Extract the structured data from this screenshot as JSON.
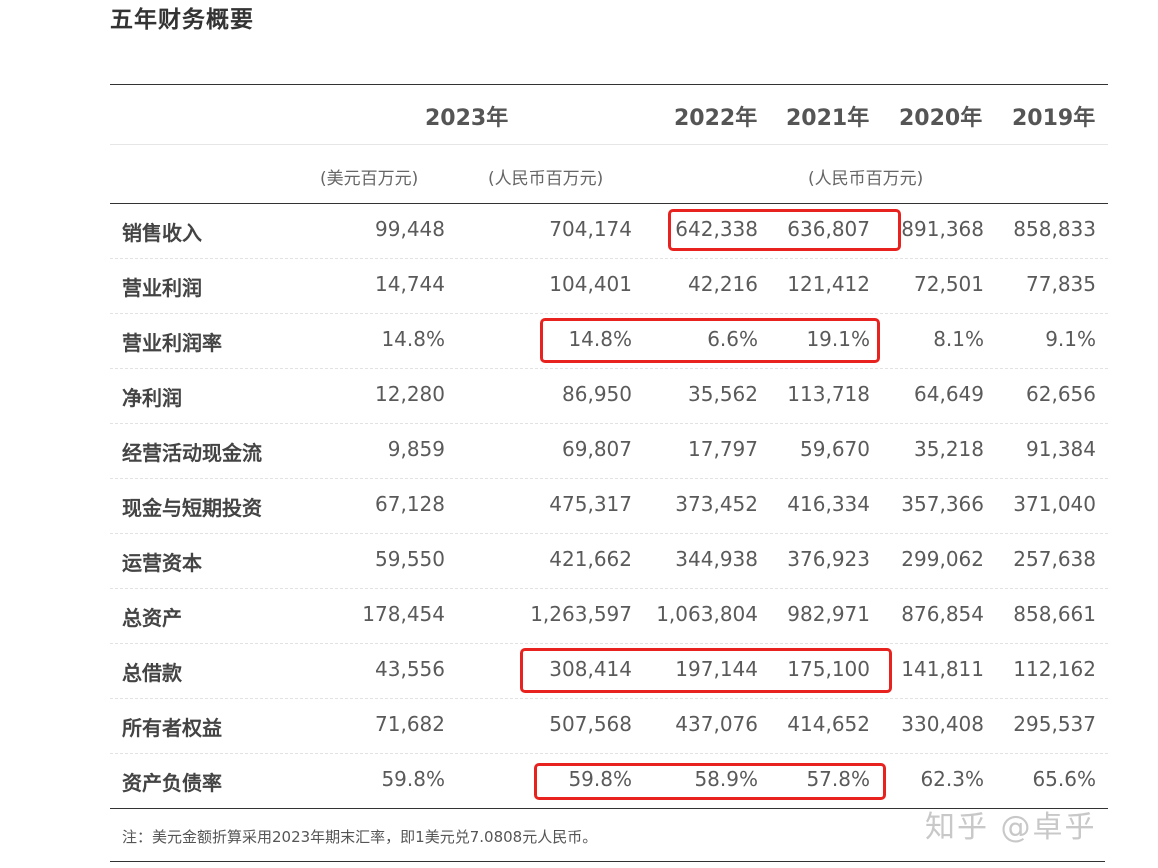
{
  "page": {
    "title": "五年财务概要",
    "note": "注：美元金额折算采用2023年期末汇率，即1美元兑7.0808元人民币。",
    "watermark": "知乎 @卓乎"
  },
  "header": {
    "years": [
      "2023年",
      "2022年",
      "2021年",
      "2020年",
      "2019年"
    ],
    "units": {
      "usd": "(美元百万元)",
      "rmb_2023": "(人民币百万元)",
      "rmb_prior": "(人民币百万元)"
    }
  },
  "rows": [
    {
      "label": "销售收入",
      "values": [
        "99,448",
        "704,174",
        "642,338",
        "636,807",
        "891,368",
        "858,833"
      ]
    },
    {
      "label": "营业利润",
      "values": [
        "14,744",
        "104,401",
        "42,216",
        "121,412",
        "72,501",
        "77,835"
      ]
    },
    {
      "label": "营业利润率",
      "values": [
        "14.8%",
        "14.8%",
        "6.6%",
        "19.1%",
        "8.1%",
        "9.1%"
      ]
    },
    {
      "label": "净利润",
      "values": [
        "12,280",
        "86,950",
        "35,562",
        "113,718",
        "64,649",
        "62,656"
      ]
    },
    {
      "label": "经营活动现金流",
      "values": [
        "9,859",
        "69,807",
        "17,797",
        "59,670",
        "35,218",
        "91,384"
      ]
    },
    {
      "label": "现金与短期投资",
      "values": [
        "67,128",
        "475,317",
        "373,452",
        "416,334",
        "357,366",
        "371,040"
      ]
    },
    {
      "label": "运营资本",
      "values": [
        "59,550",
        "421,662",
        "344,938",
        "376,923",
        "299,062",
        "257,638"
      ]
    },
    {
      "label": "总资产",
      "values": [
        "178,454",
        "1,263,597",
        "1,063,804",
        "982,971",
        "876,854",
        "858,661"
      ]
    },
    {
      "label": "总借款",
      "values": [
        "43,556",
        "308,414",
        "197,144",
        "175,100",
        "141,811",
        "112,162"
      ]
    },
    {
      "label": "所有者权益",
      "values": [
        "71,682",
        "507,568",
        "437,076",
        "414,652",
        "330,408",
        "295,537"
      ]
    },
    {
      "label": "资产负债率",
      "values": [
        "59.8%",
        "59.8%",
        "58.9%",
        "57.8%",
        "62.3%",
        "65.6%"
      ]
    }
  ],
  "highlight_color": "#e8231f"
}
